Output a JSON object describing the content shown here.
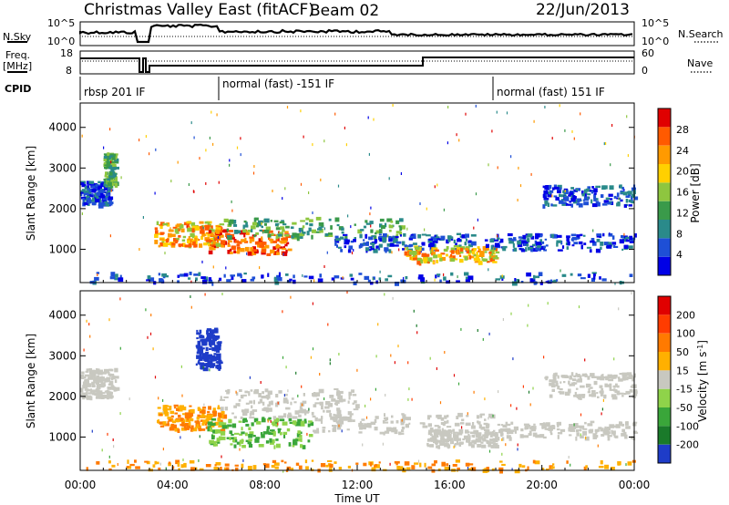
{
  "header": {
    "station": "Christmas Valley East (fitACF)",
    "beam": "Beam 02",
    "date": "22/Jun/2013"
  },
  "left_labels": {
    "nsky": "N.Sky",
    "freq": "Freq.",
    "freq_unit": "[MHz]",
    "cpid": "CPID"
  },
  "right_labels": {
    "nsearch": "N.Search",
    "nave": "Nave"
  },
  "noise_axis": {
    "left_ticks": [
      "10^5",
      "10^0"
    ],
    "right_ticks": [
      "10^5",
      "10^0"
    ]
  },
  "freq_axis": {
    "left_ticks": [
      "18",
      "8"
    ],
    "right_ticks": [
      "60",
      "0"
    ]
  },
  "cpid_segments": [
    {
      "label": "rbsp 201 IF",
      "start_hour": 0.0
    },
    {
      "label": "normal (fast) -151 IF",
      "start_hour": 6.0
    },
    {
      "label": "normal (fast) 151 IF",
      "start_hour": 18.0
    }
  ],
  "time_axis": {
    "label": "Time UT",
    "ticks": [
      "00:00",
      "04:00",
      "08:00",
      "12:00",
      "16:00",
      "20:00",
      "00:00"
    ]
  },
  "chart_data": [
    {
      "type": "heatmap",
      "title": "",
      "xlabel": "Time UT",
      "ylabel": "Slant Range [km]",
      "ylim": [
        180,
        4600
      ],
      "xlim_hours": [
        0,
        24
      ],
      "y_ticks": [
        "1000",
        "2000",
        "3000",
        "4000"
      ],
      "colorbar": {
        "label": "Power [dB]",
        "ticks": [
          "4",
          "8",
          "12",
          "16",
          "20",
          "24",
          "28"
        ],
        "range": [
          0,
          32
        ],
        "colors": [
          "#0000e6",
          "#1e4fd6",
          "#2a8a8a",
          "#3a9a4a",
          "#8ec63f",
          "#ffd000",
          "#ff9a00",
          "#ff5a00",
          "#e00000"
        ]
      },
      "bands": [
        {
          "t": [
            0.0,
            1.3
          ],
          "r": [
            2100,
            2700
          ],
          "level": "low"
        },
        {
          "t": [
            1.0,
            1.5
          ],
          "r": [
            2600,
            3400
          ],
          "level": "med"
        },
        {
          "t": [
            3.2,
            6.0
          ],
          "r": [
            1100,
            1700
          ],
          "level": "high"
        },
        {
          "t": [
            5.5,
            9.0
          ],
          "r": [
            900,
            1500
          ],
          "level": "max"
        },
        {
          "t": [
            6.0,
            14.0
          ],
          "r": [
            1300,
            1800
          ],
          "level": "med"
        },
        {
          "t": [
            11.0,
            17.0
          ],
          "r": [
            1000,
            1400
          ],
          "level": "low"
        },
        {
          "t": [
            14.0,
            18.0
          ],
          "r": [
            700,
            1100
          ],
          "level": "high"
        },
        {
          "t": [
            17.5,
            24.0
          ],
          "r": [
            1000,
            1400
          ],
          "level": "low"
        },
        {
          "t": [
            20.0,
            24.0
          ],
          "r": [
            2100,
            2600
          ],
          "level": "low"
        },
        {
          "t": [
            0.0,
            24.0
          ],
          "r": [
            200,
            450
          ],
          "level": "low"
        }
      ]
    },
    {
      "type": "heatmap",
      "title": "",
      "xlabel": "Time UT",
      "ylabel": "Slant Range [km]",
      "ylim": [
        180,
        4600
      ],
      "xlim_hours": [
        0,
        24
      ],
      "y_ticks": [
        "1000",
        "2000",
        "3000",
        "4000"
      ],
      "colorbar": {
        "label": "Velocity [m s^-1]",
        "ticks": [
          "200",
          "100",
          "50",
          "15",
          "-15",
          "-50",
          "-100",
          "-200"
        ],
        "range": [
          -250,
          250
        ],
        "colors": [
          "#1e3cc8",
          "#1a7a2a",
          "#3aa63a",
          "#8fd34a",
          "#c8c8c0",
          "#ffb000",
          "#ff7a00",
          "#ff3c00",
          "#e00000"
        ]
      },
      "bands": [
        {
          "t": [
            0.0,
            1.5
          ],
          "r": [
            2000,
            2700
          ],
          "level": "gray"
        },
        {
          "t": [
            5.0,
            6.0
          ],
          "r": [
            2700,
            3700
          ],
          "level": "blue"
        },
        {
          "t": [
            3.3,
            6.2
          ],
          "r": [
            1200,
            1800
          ],
          "level": "orange"
        },
        {
          "t": [
            5.5,
            10.0
          ],
          "r": [
            800,
            1500
          ],
          "level": "green"
        },
        {
          "t": [
            6.0,
            12.0
          ],
          "r": [
            1500,
            2200
          ],
          "level": "gray"
        },
        {
          "t": [
            10.0,
            18.0
          ],
          "r": [
            1100,
            1600
          ],
          "level": "gray"
        },
        {
          "t": [
            15.0,
            18.0
          ],
          "r": [
            800,
            1200
          ],
          "level": "gray"
        },
        {
          "t": [
            18.0,
            24.0
          ],
          "r": [
            1000,
            1400
          ],
          "level": "gray"
        },
        {
          "t": [
            20.0,
            24.0
          ],
          "r": [
            2000,
            2600
          ],
          "level": "gray"
        },
        {
          "t": [
            0.0,
            24.0
          ],
          "r": [
            200,
            450
          ],
          "level": "orange"
        }
      ]
    }
  ]
}
